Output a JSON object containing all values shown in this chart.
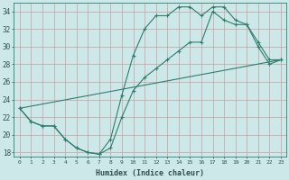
{
  "xlabel": "Humidex (Indice chaleur)",
  "background_color": "#cde8e8",
  "grid_color": "#b0d0d0",
  "line_color": "#2e7d6e",
  "xlim": [
    -0.5,
    23.5
  ],
  "ylim": [
    17.5,
    35.0
  ],
  "xticks": [
    0,
    1,
    2,
    3,
    4,
    5,
    6,
    7,
    8,
    9,
    10,
    11,
    12,
    13,
    14,
    15,
    16,
    17,
    18,
    19,
    20,
    21,
    22,
    23
  ],
  "yticks": [
    18,
    20,
    22,
    24,
    26,
    28,
    30,
    32,
    34
  ],
  "curve1_x": [
    0,
    1,
    2,
    3,
    4,
    5,
    6,
    7,
    8,
    9,
    10,
    11,
    12,
    13,
    14,
    15,
    16,
    17,
    18,
    19,
    20,
    21,
    22,
    23
  ],
  "curve1_y": [
    23.0,
    21.5,
    21.0,
    21.0,
    19.5,
    18.5,
    18.0,
    17.8,
    19.5,
    24.5,
    29.0,
    32.0,
    33.5,
    33.5,
    34.5,
    34.5,
    33.5,
    34.5,
    34.5,
    33.0,
    32.5,
    30.5,
    28.5,
    28.5
  ],
  "curve2_x": [
    0,
    1,
    2,
    3,
    4,
    5,
    6,
    7,
    8,
    9,
    10,
    11,
    12,
    13,
    14,
    15,
    16,
    17,
    18,
    19,
    20,
    21,
    22,
    23
  ],
  "curve2_y": [
    23.0,
    21.5,
    21.0,
    21.0,
    19.5,
    18.5,
    18.0,
    17.8,
    18.5,
    22.0,
    25.0,
    26.5,
    27.5,
    28.5,
    29.5,
    30.5,
    30.5,
    34.0,
    33.0,
    32.5,
    32.5,
    30.0,
    28.0,
    28.5
  ],
  "curve3_x": [
    0,
    23
  ],
  "curve3_y": [
    23.0,
    28.5
  ]
}
